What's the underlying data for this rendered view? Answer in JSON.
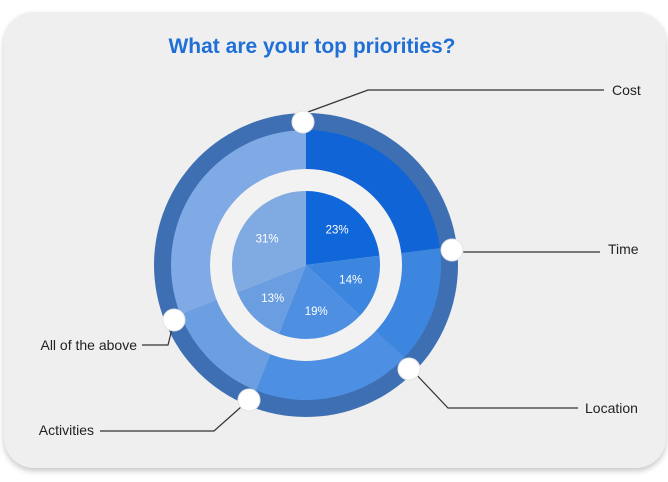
{
  "colors": {
    "card_bg": "#efefef",
    "title": "#1f6fd6",
    "outer_ring": "#3f6fb3",
    "inner_white_ring": "#f2f2f2"
  },
  "chart_data": {
    "type": "pie",
    "title": "What are your top priorities?",
    "unit": "%",
    "slices": [
      {
        "label": "Cost",
        "value": 23,
        "color": "#0f67d9",
        "outer_color": "#1164d6"
      },
      {
        "label": "Time",
        "value": 14,
        "color": "#3d86e0",
        "outer_color": "#3d86e0"
      },
      {
        "label": "Location",
        "value": 19,
        "color": "#4e8fe2",
        "outer_color": "#4d8fe2"
      },
      {
        "label": "Activities",
        "value": 13,
        "color": "#6a9ee0",
        "outer_color": "#6b9fe2"
      },
      {
        "label": "All of the above",
        "value": 31,
        "color": "#80aae2",
        "outer_color": "#80aae6"
      }
    ],
    "legend": "callout-lines"
  }
}
